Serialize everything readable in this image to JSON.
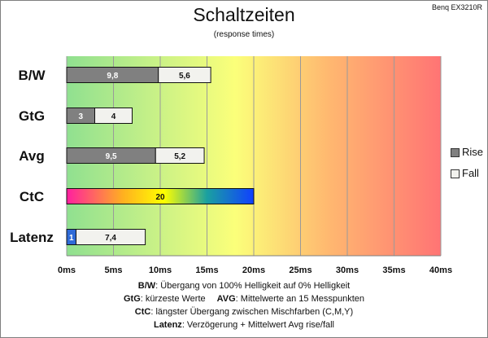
{
  "header": {
    "title": "Schaltzeiten",
    "subtitle": "(response times)",
    "model": "Benq EX3210R"
  },
  "chart_data": {
    "type": "bar",
    "orientation": "horizontal",
    "stacked": true,
    "categories": [
      "B/W",
      "GtG",
      "Avg",
      "CtC",
      "Latenz"
    ],
    "series": [
      {
        "name": "Rise",
        "values": [
          9.8,
          3,
          9.5,
          20,
          1
        ],
        "labels": [
          "9,8",
          "3",
          "9,5",
          "20",
          "1"
        ],
        "color": "#808080"
      },
      {
        "name": "Fall",
        "values": [
          5.6,
          4,
          5.2,
          0,
          7.4
        ],
        "labels": [
          "5,6",
          "4",
          "5,2",
          "",
          "7,4"
        ],
        "color": "#f2f2ee"
      }
    ],
    "special_colors": {
      "CtC": "rainbow",
      "Latenz_rise": "#2f6bd8"
    },
    "xlim": [
      0,
      40
    ],
    "xticks": [
      "0ms",
      "5ms",
      "10ms",
      "15ms",
      "20ms",
      "25ms",
      "30ms",
      "35ms",
      "40ms"
    ],
    "grid": true,
    "background_gradient": [
      "#90e090",
      "#fbff7a",
      "#ff7474"
    ],
    "legend_position": "right"
  },
  "footnotes": [
    {
      "key": "B/W",
      "text": ":  Übergang von 100% Helligkeit auf 0% Helligkeit"
    },
    {
      "key": "GtG",
      "text": ": kürzeste  Werte"
    },
    {
      "key": "AVG",
      "text": ": Mittelwerte  an 15 Messpunkten"
    },
    {
      "key": "CtC",
      "text": ": längster Übergang  zwischen Mischfarben (C,M,Y)"
    },
    {
      "key": "Latenz",
      "text": ": Verzögerung  + Mittelwert  Avg rise/fall"
    }
  ]
}
